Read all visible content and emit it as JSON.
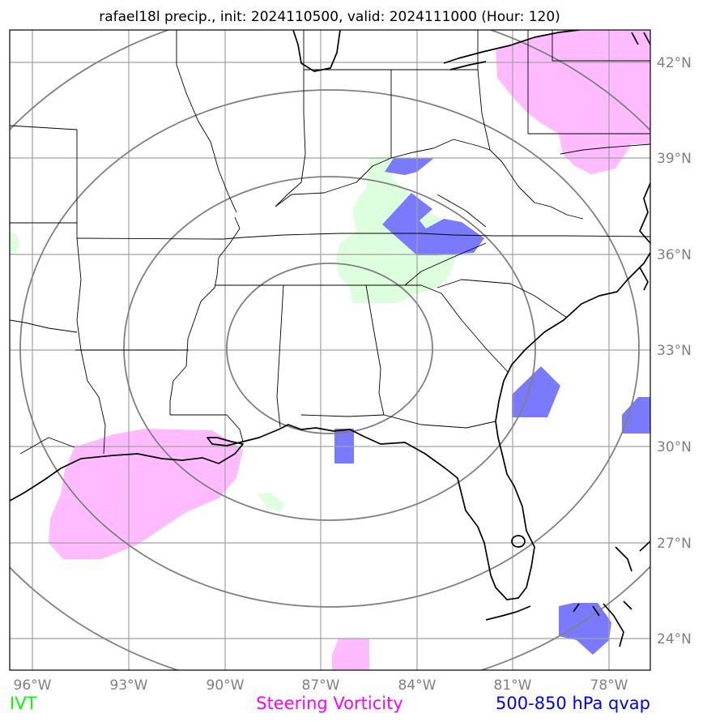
{
  "title": "rafael18l precip., init: 2024110500, valid: 2024111000 (Hour: 120)",
  "lon_ticks": [
    "96°W",
    "93°W",
    "90°W",
    "87°W",
    "84°W",
    "81°W",
    "78°W"
  ],
  "lat_ticks": [
    "42°N",
    "39°N",
    "36°N",
    "33°N",
    "30°N",
    "27°N",
    "24°N"
  ],
  "legend": [
    {
      "label": "IVT",
      "color": "#00ff00"
    },
    {
      "label": "Steering Vorticity",
      "color": "#ff00ff"
    },
    {
      "label": "500-850 hPa qvap",
      "color": "#0000ff"
    }
  ],
  "colors": {
    "ivt_fill": "#ddffdd",
    "vorticity_fill": "#ffbbff",
    "qvap_fill": "#7a7aff",
    "grid": "#a0a0a0",
    "range_rings": "#808080"
  }
}
